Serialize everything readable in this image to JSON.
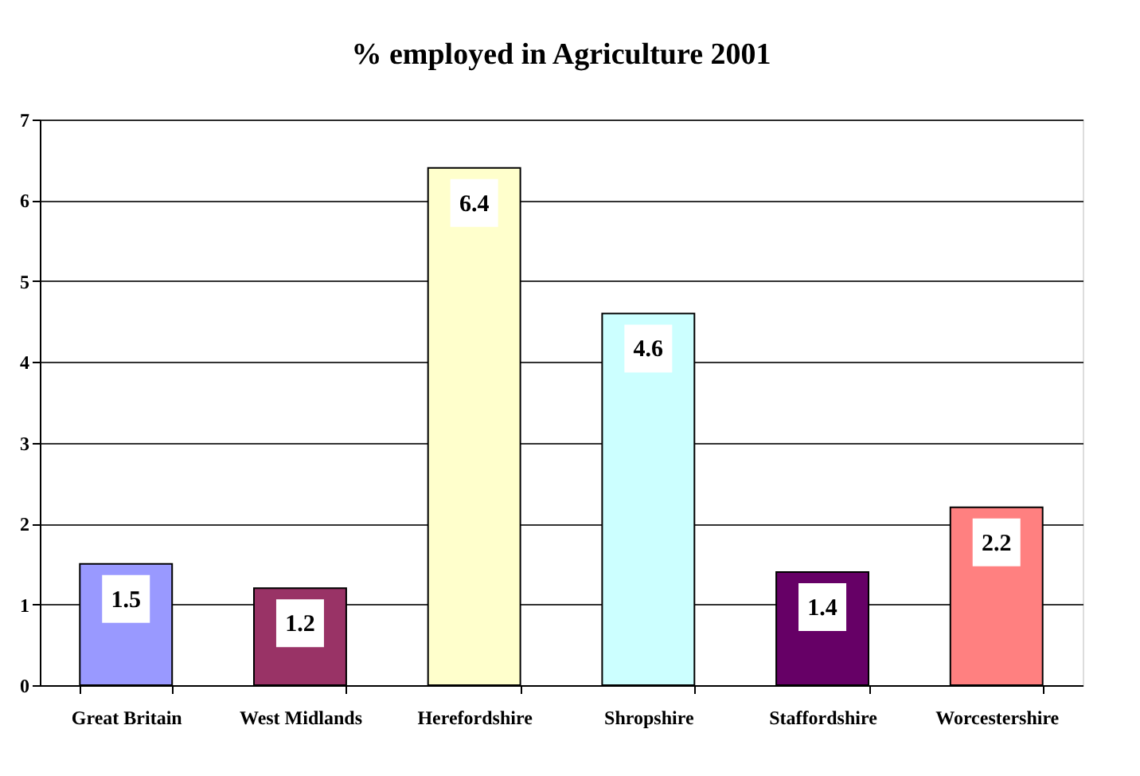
{
  "chart_data": {
    "type": "bar",
    "title": "% employed in Agriculture 2001",
    "categories": [
      "Great Britain",
      "West Midlands",
      "Herefordshire",
      "Shropshire",
      "Staffordshire",
      "Worcestershire"
    ],
    "values": [
      1.5,
      1.2,
      6.4,
      4.6,
      1.4,
      2.2
    ],
    "colors": [
      "#9999ff",
      "#993366",
      "#ffffcc",
      "#ccffff",
      "#660066",
      "#ff8080"
    ],
    "ylim": [
      0,
      7
    ],
    "yticks": [
      0,
      1,
      2,
      3,
      4,
      5,
      6,
      7
    ],
    "grid": "y",
    "data_labels": true,
    "legend": false
  }
}
